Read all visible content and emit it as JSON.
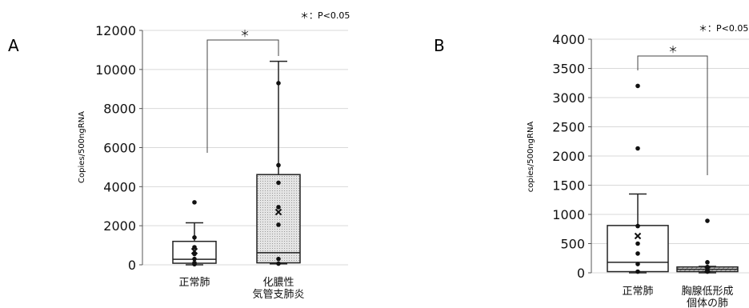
{
  "panels": [
    {
      "letter": "A",
      "significance_note": "＊：P<0.05",
      "bracket_mark": "＊",
      "chart_data": {
        "type": "box",
        "ylabel": "Copies/500ngRNA",
        "ylim": [
          0,
          12000
        ],
        "yticks": [
          "0",
          "2000",
          "4000",
          "6000",
          "8000",
          "10000",
          "12000"
        ],
        "ytick_values": [
          0,
          2000,
          4000,
          6000,
          8000,
          10000,
          12000
        ],
        "grid": true,
        "categories": [
          {
            "label": [
              "正常肺"
            ],
            "whisker_low": 0,
            "q1": 80,
            "median": 280,
            "q3": 1200,
            "whisker_high": 2150,
            "mean": 700,
            "fill": "plain",
            "points": [
              3200,
              1400,
              900,
              550,
              300,
              100,
              30
            ]
          },
          {
            "label": [
              "化膿性",
              "気管支肺炎"
            ],
            "whisker_low": 50,
            "q1": 100,
            "median": 620,
            "q3": 4620,
            "whisker_high": 10420,
            "mean": 2700,
            "fill": "dotted",
            "points": [
              9300,
              5100,
              4200,
              2950,
              2050,
              300,
              60
            ]
          }
        ]
      }
    },
    {
      "letter": "B",
      "significance_note": "＊：P<0.05",
      "bracket_mark": "＊",
      "chart_data": {
        "type": "box",
        "ylabel": "copies/500ngRNA",
        "ylim": [
          0,
          4000
        ],
        "yticks": [
          "0",
          "500",
          "1000",
          "1500",
          "2000",
          "2500",
          "3000",
          "3500",
          "4000"
        ],
        "ytick_values": [
          0,
          500,
          1000,
          1500,
          2000,
          2500,
          3000,
          3500,
          4000
        ],
        "grid": true,
        "categories": [
          {
            "label": [
              "正常肺"
            ],
            "whisker_low": 0,
            "q1": 20,
            "median": 180,
            "q3": 810,
            "whisker_high": 1350,
            "mean": 630,
            "fill": "plain",
            "points": [
              3200,
              2130,
              800,
              500,
              330,
              150,
              20
            ]
          },
          {
            "label": [
              "胸腺低形成",
              "個体の肺"
            ],
            "whisker_low": 0,
            "q1": 20,
            "median": 60,
            "q3": 100,
            "whisker_high": 110,
            "mean": 60,
            "fill": "hatched",
            "points": [
              890,
              180,
              100,
              40,
              20
            ]
          }
        ]
      }
    }
  ]
}
